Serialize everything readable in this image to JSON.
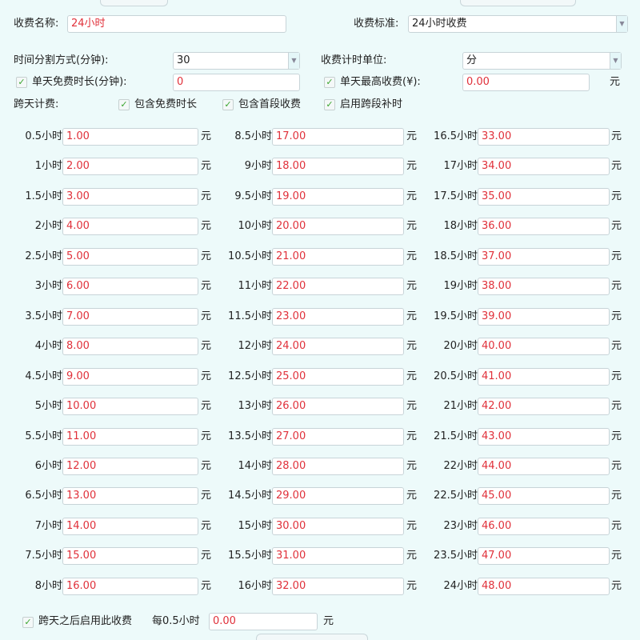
{
  "form": {
    "name_label": "收费名称:",
    "name_value": "24小时",
    "standard_label": "收费标准:",
    "standard_value": "24小时收费",
    "split_label": "时间分割方式(分钟):",
    "split_value": "30",
    "unit_label": "收费计时单位:",
    "unit_value": "分",
    "free_label": "单天免费时长(分钟):",
    "free_checked": true,
    "free_value": "0",
    "max_label": "单天最高收费(¥):",
    "max_checked": true,
    "max_value": "0.00",
    "max_unit": "元",
    "cross_label": "跨天计费:",
    "cross_opts": [
      {
        "label": "包含免费时长",
        "checked": true
      },
      {
        "label": "包含首段收费",
        "checked": true
      },
      {
        "label": "启用跨段补时",
        "checked": true
      }
    ]
  },
  "unit": "元",
  "rates": [
    {
      "label": "0.5小时",
      "value": "1.00"
    },
    {
      "label": "1小时",
      "value": "2.00"
    },
    {
      "label": "1.5小时",
      "value": "3.00"
    },
    {
      "label": "2小时",
      "value": "4.00"
    },
    {
      "label": "2.5小时",
      "value": "5.00"
    },
    {
      "label": "3小时",
      "value": "6.00"
    },
    {
      "label": "3.5小时",
      "value": "7.00"
    },
    {
      "label": "4小时",
      "value": "8.00"
    },
    {
      "label": "4.5小时",
      "value": "9.00"
    },
    {
      "label": "5小时",
      "value": "10.00"
    },
    {
      "label": "5.5小时",
      "value": "11.00"
    },
    {
      "label": "6小时",
      "value": "12.00"
    },
    {
      "label": "6.5小时",
      "value": "13.00"
    },
    {
      "label": "7小时",
      "value": "14.00"
    },
    {
      "label": "7.5小时",
      "value": "15.00"
    },
    {
      "label": "8小时",
      "value": "16.00"
    },
    {
      "label": "8.5小时",
      "value": "17.00"
    },
    {
      "label": "9小时",
      "value": "18.00"
    },
    {
      "label": "9.5小时",
      "value": "19.00"
    },
    {
      "label": "10小时",
      "value": "20.00"
    },
    {
      "label": "10.5小时",
      "value": "21.00"
    },
    {
      "label": "11小时",
      "value": "22.00"
    },
    {
      "label": "11.5小时",
      "value": "23.00"
    },
    {
      "label": "12小时",
      "value": "24.00"
    },
    {
      "label": "12.5小时",
      "value": "25.00"
    },
    {
      "label": "13小时",
      "value": "26.00"
    },
    {
      "label": "13.5小时",
      "value": "27.00"
    },
    {
      "label": "14小时",
      "value": "28.00"
    },
    {
      "label": "14.5小时",
      "value": "29.00"
    },
    {
      "label": "15小时",
      "value": "30.00"
    },
    {
      "label": "15.5小时",
      "value": "31.00"
    },
    {
      "label": "16小时",
      "value": "32.00"
    },
    {
      "label": "16.5小时",
      "value": "33.00"
    },
    {
      "label": "17小时",
      "value": "34.00"
    },
    {
      "label": "17.5小时",
      "value": "35.00"
    },
    {
      "label": "18小时",
      "value": "36.00"
    },
    {
      "label": "18.5小时",
      "value": "37.00"
    },
    {
      "label": "19小时",
      "value": "38.00"
    },
    {
      "label": "19.5小时",
      "value": "39.00"
    },
    {
      "label": "20小时",
      "value": "40.00"
    },
    {
      "label": "20.5小时",
      "value": "41.00"
    },
    {
      "label": "21小时",
      "value": "42.00"
    },
    {
      "label": "21.5小时",
      "value": "43.00"
    },
    {
      "label": "22小时",
      "value": "44.00"
    },
    {
      "label": "22.5小时",
      "value": "45.00"
    },
    {
      "label": "23小时",
      "value": "46.00"
    },
    {
      "label": "23.5小时",
      "value": "47.00"
    },
    {
      "label": "24小时",
      "value": "48.00"
    }
  ],
  "after_cross": {
    "label": "跨天之后启用此收费",
    "checked": true,
    "per_label": "每0.5小时",
    "value": "0.00",
    "unit": "元"
  },
  "colors": {
    "value_text": "#e0303a",
    "check": "#3aa52e",
    "background": "#edfafa"
  }
}
